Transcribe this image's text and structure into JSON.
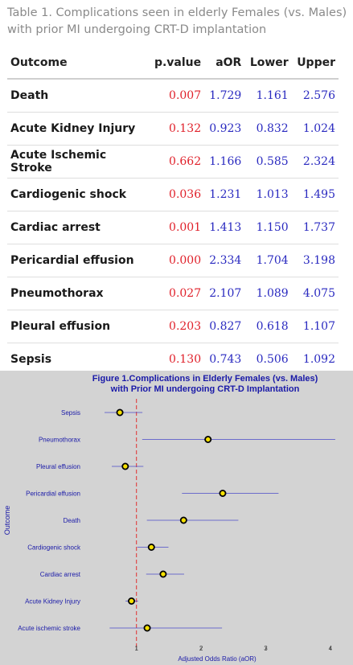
{
  "table": {
    "caption": "Table 1. Complications seen in elderly Females (vs. Males) with prior MI undergoing CRT-D implantation",
    "headers": [
      "Outcome",
      "p.value",
      "aOR",
      "Lower",
      "Upper"
    ],
    "rows": [
      {
        "outcome": "Death",
        "p": "0.007",
        "aor": "1.729",
        "lower": "1.161",
        "upper": "2.576"
      },
      {
        "outcome": "Acute Kidney Injury",
        "p": "0.132",
        "aor": "0.923",
        "lower": "0.832",
        "upper": "1.024"
      },
      {
        "outcome": "Acute Ischemic Stroke",
        "p": "0.662",
        "aor": "1.166",
        "lower": "0.585",
        "upper": "2.324"
      },
      {
        "outcome": "Cardiogenic shock",
        "p": "0.036",
        "aor": "1.231",
        "lower": "1.013",
        "upper": "1.495"
      },
      {
        "outcome": "Cardiac arrest",
        "p": "0.001",
        "aor": "1.413",
        "lower": "1.150",
        "upper": "1.737"
      },
      {
        "outcome": "Pericardial effusion",
        "p": "0.000",
        "aor": "2.334",
        "lower": "1.704",
        "upper": "3.198"
      },
      {
        "outcome": "Pneumothorax",
        "p": "0.027",
        "aor": "2.107",
        "lower": "1.089",
        "upper": "4.075"
      },
      {
        "outcome": "Pleural effusion",
        "p": "0.203",
        "aor": "0.827",
        "lower": "0.618",
        "upper": "1.107"
      },
      {
        "outcome": "Sepsis",
        "p": "0.130",
        "aor": "0.743",
        "lower": "0.506",
        "upper": "1.092"
      }
    ],
    "colors": {
      "pvalue": "#e0202a",
      "estimate": "#2a2ac0"
    }
  },
  "chart_data": {
    "type": "scatter",
    "subtype": "forest-plot",
    "title_lines": [
      "Figure 1.Complications in Elderly Females (vs. Males)",
      "with Prior MI undergoing CRT-D Implantation"
    ],
    "xlabel": "Adjusted Odds Ratio (aOR)",
    "ylabel": "Outcome",
    "xlim": [
      0.22,
      4.3
    ],
    "xticks": [
      1,
      2,
      3,
      4
    ],
    "reference_line": 1,
    "grid": false,
    "rows": [
      {
        "label": "Sepsis",
        "aor": 0.743,
        "lower": 0.506,
        "upper": 1.092
      },
      {
        "label": "Pneumothorax",
        "aor": 2.107,
        "lower": 1.089,
        "upper": 4.075
      },
      {
        "label": "Pleural effusion",
        "aor": 0.827,
        "lower": 0.618,
        "upper": 1.107
      },
      {
        "label": "Pericardial effusion",
        "aor": 2.334,
        "lower": 1.704,
        "upper": 3.198
      },
      {
        "label": "Death",
        "aor": 1.729,
        "lower": 1.161,
        "upper": 2.576
      },
      {
        "label": "Cardiogenic shock",
        "aor": 1.231,
        "lower": 1.013,
        "upper": 1.495
      },
      {
        "label": "Cardiac arrest",
        "aor": 1.413,
        "lower": 1.15,
        "upper": 1.737
      },
      {
        "label": "Acute Kidney Injury",
        "aor": 0.923,
        "lower": 0.832,
        "upper": 1.024
      },
      {
        "label": "Acute ischemic stroke",
        "aor": 1.166,
        "lower": 0.585,
        "upper": 2.324
      }
    ],
    "colors": {
      "background": "#d3d3d3",
      "title": "#1a1aa8",
      "text": "#1a1aa8",
      "ci_line": "#4a4ac8",
      "point_fill": "#f5e000",
      "point_stroke": "#000000",
      "reference": "#e03030"
    }
  }
}
